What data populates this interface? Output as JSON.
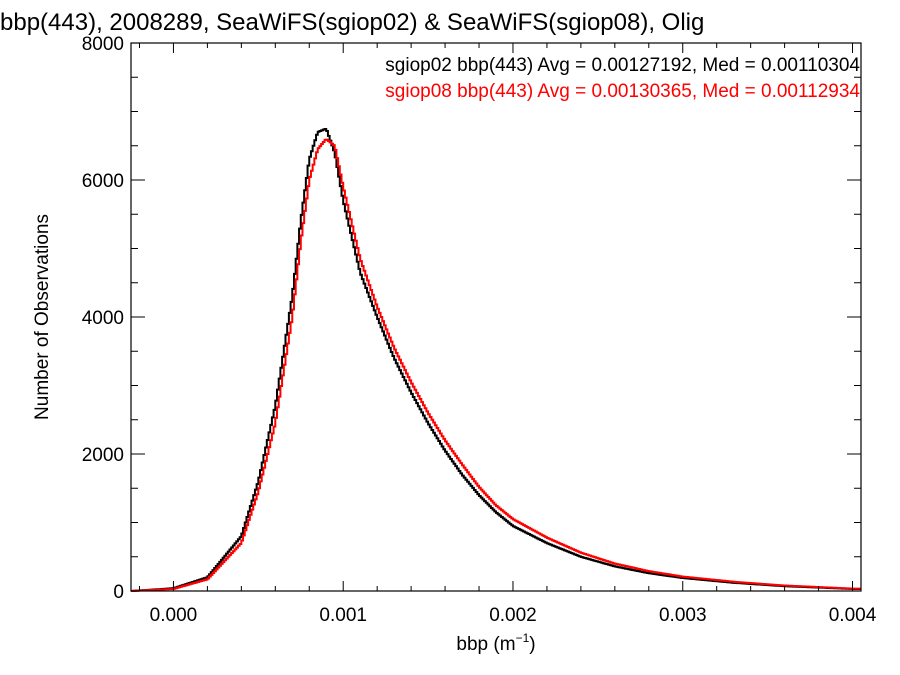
{
  "chart_data": {
    "type": "histogram",
    "title": "bbp(443), 2008289, SeaWiFS(sgiop02) & SeaWiFS(sgiop08), Olig",
    "xlabel": "bbp (m",
    "xlabel_sup": "−1",
    "xlabel_close": ")",
    "ylabel": "Number of Observations",
    "xlim": [
      -0.00025,
      0.00405
    ],
    "ylim": [
      0,
      8000
    ],
    "x_ticks": [
      "0.000",
      "0.001",
      "0.002",
      "0.003",
      "0.004"
    ],
    "x_tick_values": [
      0.0,
      0.001,
      0.002,
      0.003,
      0.004
    ],
    "y_ticks": [
      "0",
      "2000",
      "4000",
      "6000",
      "8000"
    ],
    "y_tick_values": [
      0,
      2000,
      4000,
      6000,
      8000
    ],
    "annotations": [
      "sgiop02 bbp(443) Avg = 0.00127192, Med = 0.00110304",
      "sgiop08 bbp(443) Avg = 0.00130365, Med = 0.00112934"
    ],
    "series": [
      {
        "name": "sgiop02",
        "color": "#000000",
        "x": [
          -0.00025,
          0.0,
          0.0002,
          0.0004,
          0.0005,
          0.0006,
          0.0007,
          0.00075,
          0.0008,
          0.00085,
          0.0009,
          0.00095,
          0.001,
          0.0011,
          0.0012,
          0.0013,
          0.0014,
          0.0015,
          0.0016,
          0.0017,
          0.0018,
          0.0019,
          0.002,
          0.0022,
          0.0024,
          0.0026,
          0.0028,
          0.003,
          0.0033,
          0.0036,
          0.004
        ],
        "y": [
          0,
          40,
          200,
          800,
          1600,
          2700,
          4300,
          5400,
          6300,
          6700,
          6750,
          6400,
          5700,
          4650,
          4000,
          3400,
          2900,
          2450,
          2050,
          1700,
          1400,
          1150,
          950,
          700,
          500,
          360,
          260,
          190,
          120,
          70,
          30
        ]
      },
      {
        "name": "sgiop08",
        "color": "#ff0000",
        "x": [
          -0.00025,
          0.0,
          0.0002,
          0.0004,
          0.0005,
          0.0006,
          0.0007,
          0.00075,
          0.0008,
          0.00085,
          0.0009,
          0.00095,
          0.001,
          0.0011,
          0.0012,
          0.0013,
          0.0014,
          0.0015,
          0.0016,
          0.0017,
          0.0018,
          0.0019,
          0.002,
          0.0022,
          0.0024,
          0.0026,
          0.0028,
          0.003,
          0.0033,
          0.0036,
          0.004
        ],
        "y": [
          0,
          30,
          170,
          700,
          1450,
          2450,
          4000,
          5100,
          6000,
          6450,
          6600,
          6500,
          5900,
          4850,
          4150,
          3550,
          3050,
          2600,
          2200,
          1850,
          1520,
          1250,
          1050,
          780,
          560,
          400,
          290,
          210,
          135,
          80,
          35
        ]
      }
    ]
  }
}
